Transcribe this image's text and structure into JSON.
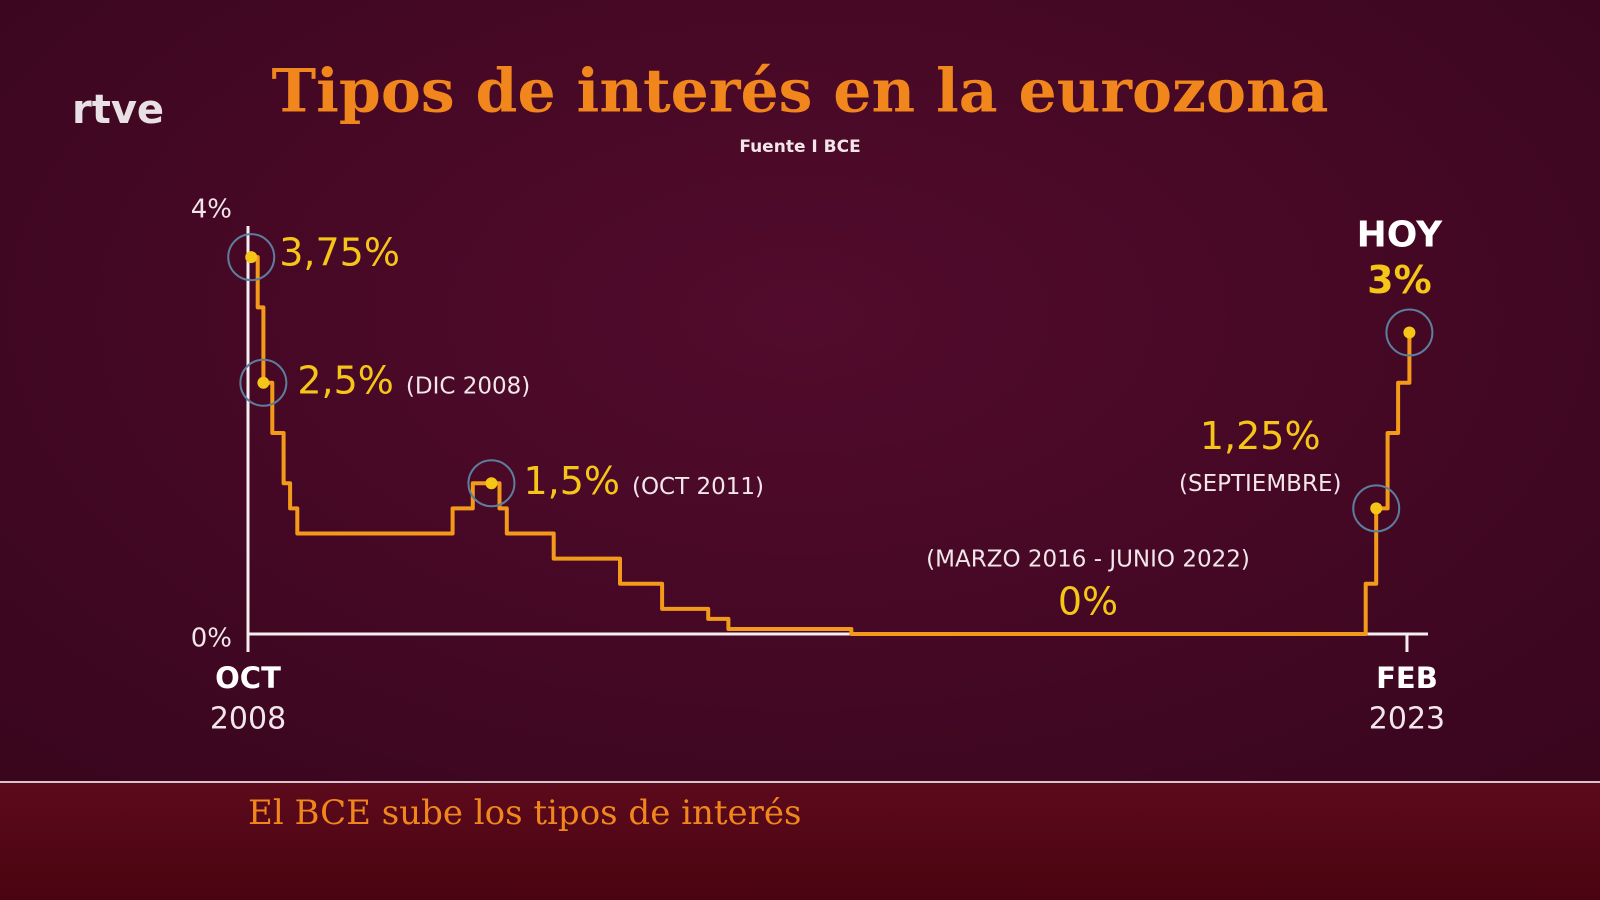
{
  "logo": "rtve",
  "caption": "El BCE sube los tipos de interés",
  "chart_data": {
    "type": "line",
    "title": "Tipos de interés en la eurozona",
    "subtitle": "Fuente I BCE",
    "color": "#f39a1a",
    "x": [
      2008.79,
      2008.87,
      2008.87,
      2008.94,
      2008.94,
      2009.05,
      2009.05,
      2009.19,
      2009.19,
      2009.27,
      2009.27,
      2009.36,
      2009.36,
      2011.28,
      2011.28,
      2011.53,
      2011.53,
      2011.86,
      2011.86,
      2011.95,
      2011.95,
      2012.53,
      2012.53,
      2013.35,
      2013.35,
      2013.87,
      2013.87,
      2014.44,
      2014.44,
      2014.69,
      2014.69,
      2016.21,
      2016.21,
      2022.57,
      2022.57,
      2022.7,
      2022.7,
      2022.84,
      2022.84,
      2022.97,
      2022.97,
      2023.11,
      2023.11
    ],
    "values": [
      3.75,
      3.75,
      3.25,
      3.25,
      2.5,
      2.5,
      2,
      2,
      1.5,
      1.5,
      1.25,
      1.25,
      1,
      1,
      1.25,
      1.25,
      1.5,
      1.5,
      1.25,
      1.25,
      1,
      1,
      0.75,
      0.75,
      0.5,
      0.5,
      0.25,
      0.25,
      0.15,
      0.15,
      0.05,
      0.05,
      0,
      0,
      0.5,
      0.5,
      1.25,
      1.25,
      2,
      2,
      2.5,
      2.5,
      3
    ],
    "xlim": [
      2008.75,
      2023.34
    ],
    "xticks": [
      {
        "value": 2008.75,
        "label": "OCT",
        "sublabel": "2008"
      },
      {
        "value": 2023.08,
        "label": "FEB",
        "sublabel": "2023"
      }
    ],
    "ylim": [
      0,
      4
    ],
    "yticks": [
      {
        "value": 0,
        "label": "0%"
      },
      {
        "value": 4,
        "label": "4%"
      }
    ],
    "grid": false,
    "annotations": [
      {
        "x": 2008.79,
        "value": 3.75,
        "label": "3,75%"
      },
      {
        "x": 2008.94,
        "value": 2.5,
        "label": "2,5%",
        "note": "(DIC 2008)"
      },
      {
        "x": 2011.76,
        "value": 1.5,
        "label": "1,5%",
        "note": "(OCT 2011)"
      },
      {
        "x": 2022.7,
        "value": 1.25,
        "label": "1,25%",
        "note": "(SEPTIEMBRE)"
      },
      {
        "value": 0,
        "label": "0%",
        "note": "(MARZO 2016 - JUNIO 2022)"
      },
      {
        "x": 2023.11,
        "value": 3,
        "label": "3%",
        "note": "HOY"
      }
    ]
  }
}
